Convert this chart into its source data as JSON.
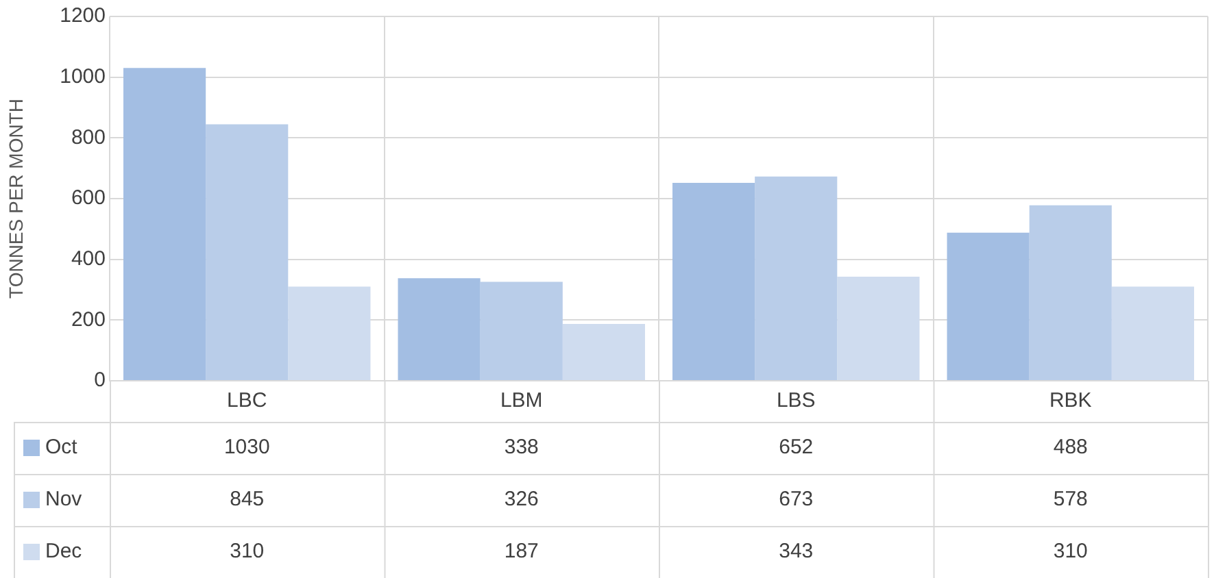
{
  "chart_data": {
    "type": "bar",
    "ylabel": "TONNES PER MONTH",
    "categories": [
      "LBC",
      "LBM",
      "LBS",
      "RBK"
    ],
    "series": [
      {
        "name": "Oct",
        "color": "#a3bee3",
        "values": [
          1030,
          338,
          652,
          488
        ]
      },
      {
        "name": "Nov",
        "color": "#b9cde9",
        "values": [
          845,
          326,
          673,
          578
        ]
      },
      {
        "name": "Dec",
        "color": "#cfdcef",
        "values": [
          310,
          187,
          343,
          310
        ]
      }
    ],
    "ylim": [
      0,
      1200
    ],
    "yticks": [
      0,
      200,
      400,
      600,
      800,
      1000,
      1200
    ],
    "grid": true,
    "data_labels": true,
    "legend": "bottom"
  }
}
